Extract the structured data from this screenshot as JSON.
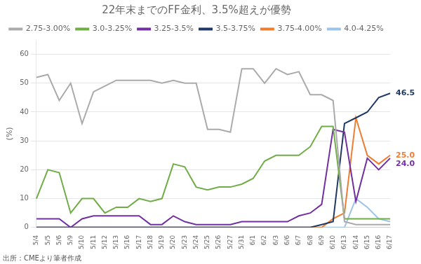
{
  "chart_data": {
    "type": "line",
    "title": "22年末までのFF金利、3.5%超えが優勢",
    "ylabel": "(%)",
    "source": "出所：CMEより筆者作成",
    "categories": [
      "5/4",
      "5/5",
      "5/6",
      "5/9",
      "5/10",
      "5/11",
      "5/12",
      "5/13",
      "5/16",
      "5/17",
      "5/18",
      "5/19",
      "5/20",
      "5/23",
      "5/24",
      "5/25",
      "5/26",
      "5/27",
      "5/31",
      "6/1",
      "6/2",
      "6/3",
      "6/6",
      "6/7",
      "6/8",
      "6/9",
      "6/10",
      "6/13",
      "6/14",
      "6/15",
      "6/16",
      "6/17"
    ],
    "series": [
      {
        "name": "2.75-3.00%",
        "color": "#aaaaaa",
        "values": [
          52,
          53,
          44,
          50,
          36,
          47,
          49,
          51,
          51,
          51,
          51,
          50,
          51,
          50,
          50,
          34,
          34,
          33,
          55,
          55,
          50,
          55,
          53,
          54,
          46,
          46,
          44,
          2,
          1,
          1,
          1,
          1
        ]
      },
      {
        "name": "3.0-3.25%",
        "color": "#70ad47",
        "values": [
          10,
          20,
          19,
          5,
          10,
          10,
          5,
          7,
          7,
          10,
          9,
          10,
          22,
          21,
          14,
          13,
          14,
          14,
          15,
          17,
          23,
          25,
          25,
          25,
          28,
          35,
          35,
          3,
          3,
          3,
          3,
          3
        ]
      },
      {
        "name": "3.25-3.5%",
        "color": "#7030a0",
        "values": [
          3,
          3,
          3,
          0,
          3,
          4,
          4,
          4,
          4,
          4,
          1,
          1,
          4,
          2,
          1,
          1,
          1,
          1,
          2,
          2,
          2,
          2,
          2,
          4,
          5,
          8,
          34,
          33,
          9,
          24,
          20,
          24
        ]
      },
      {
        "name": "3.5-3.75%",
        "color": "#1f3864",
        "values": [
          0,
          0,
          0,
          0,
          0,
          0,
          0,
          0,
          0,
          0,
          0,
          0,
          0,
          0,
          0,
          0,
          0,
          0,
          0,
          0,
          0,
          0,
          0,
          0,
          0,
          1,
          2,
          36,
          38,
          40,
          45,
          46.5
        ]
      },
      {
        "name": "3.75-4.00%",
        "color": "#ed7d31",
        "values": [
          0,
          0,
          0,
          0,
          0,
          0,
          0,
          0,
          0,
          0,
          0,
          0,
          0,
          0,
          0,
          0,
          0,
          0,
          0,
          0,
          0,
          0,
          0,
          0,
          0,
          0,
          3,
          5,
          38,
          25,
          22,
          25
        ]
      },
      {
        "name": "4.0-4.25%",
        "color": "#9dc3e6",
        "values": [
          0,
          0,
          0,
          0,
          0,
          0,
          0,
          0,
          0,
          0,
          0,
          0,
          0,
          0,
          0,
          0,
          0,
          0,
          0,
          0,
          0,
          0,
          0,
          0,
          0,
          0,
          0,
          0,
          10,
          7,
          3,
          2
        ]
      }
    ],
    "annotations": [
      {
        "text": "46.5",
        "x": "6/17",
        "y": 46.5,
        "color": "#1f3864"
      },
      {
        "text": "25.0",
        "x": "6/17",
        "y": 25.0,
        "color": "#ed7d31"
      },
      {
        "text": "24.0",
        "x": "6/17",
        "y": 24.0,
        "color": "#7030a0"
      }
    ],
    "ylim": [
      0,
      65
    ],
    "yticks": [
      0,
      10,
      20,
      30,
      40,
      50,
      60
    ],
    "grid": true,
    "legend": "top"
  }
}
